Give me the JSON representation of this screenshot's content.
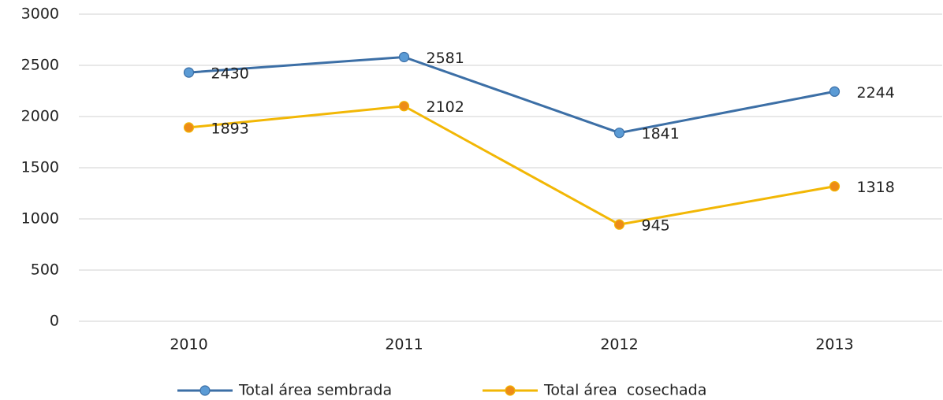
{
  "chart_data": {
    "type": "line",
    "categories": [
      "2010",
      "2011",
      "2012",
      "2013"
    ],
    "series": [
      {
        "name": "Total área sembrada",
        "color": "#3c6fa6",
        "marker_color": "#5b9bd5",
        "values": [
          2430,
          2581,
          1841,
          2244
        ]
      },
      {
        "name": "Total área  cosechada",
        "color": "#f2b705",
        "marker_color": "#ed8b17",
        "values": [
          1893,
          2102,
          945,
          1318
        ]
      }
    ],
    "ylim": [
      0,
      3000
    ],
    "yticks": [
      0,
      500,
      1000,
      1500,
      2000,
      2500,
      3000
    ],
    "grid": true,
    "legend": "bottom"
  }
}
